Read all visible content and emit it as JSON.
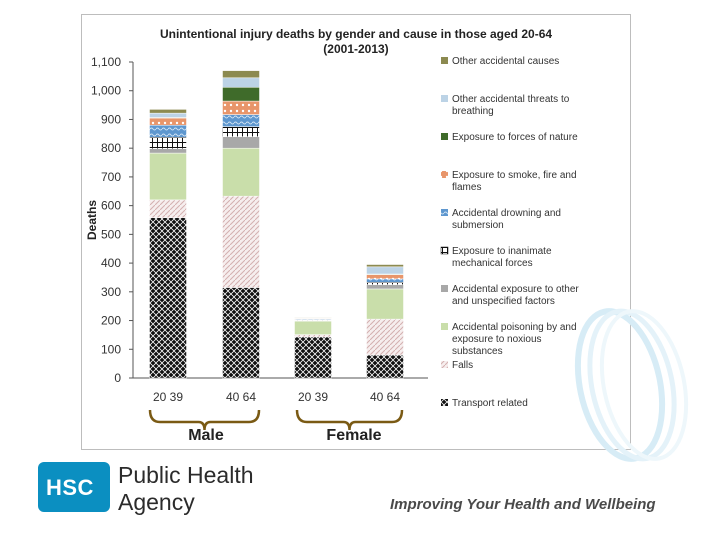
{
  "chart_data": {
    "type": "bar",
    "stacked": true,
    "title": "Unintentional injury deaths by gender and cause in those aged 20-64",
    "subtitle": "(2001-2013)",
    "ylabel": "Deaths",
    "xlabel": "",
    "ylim": [
      0,
      1100
    ],
    "yticks": [
      0,
      100,
      200,
      300,
      400,
      500,
      600,
      700,
      800,
      900,
      1000,
      1100
    ],
    "ytick_labels": [
      "0",
      "100",
      "200",
      "300",
      "400",
      "500",
      "600",
      "700",
      "800",
      "900",
      "1,000",
      "1,100"
    ],
    "categories": [
      "20 39",
      "40 64",
      "20 39",
      "40 64"
    ],
    "groups": [
      "Male",
      "Female"
    ],
    "legend_position": "right",
    "series": [
      {
        "name": "Transport related",
        "color": "#222222",
        "values": [
          558,
          315,
          143,
          80
        ]
      },
      {
        "name": "Falls",
        "color": "#e6d3d3",
        "values": [
          62,
          318,
          8,
          125
        ]
      },
      {
        "name": "Accidental poisoning by and exposure to noxious substances",
        "color": "#c9deaa",
        "values": [
          163,
          167,
          47,
          105
        ]
      },
      {
        "name": "Accidental exposure to other and unspecified factors",
        "color": "#a8a8a8",
        "values": [
          15,
          40,
          2,
          15
        ]
      },
      {
        "name": "Exposure to inanimate mechanical forces",
        "color": "#ffffff",
        "values": [
          40,
          35,
          2,
          8
        ]
      },
      {
        "name": "Accidental drowning and submersion",
        "color": "#6fa3d6",
        "values": [
          42,
          42,
          3,
          12
        ]
      },
      {
        "name": "Exposure to smoke, fire and flames",
        "color": "#e9a27a",
        "values": [
          25,
          47,
          2,
          15
        ]
      },
      {
        "name": "Exposure to forces of nature",
        "color": "#3f6b2a",
        "values": [
          2,
          48,
          1,
          2
        ]
      },
      {
        "name": "Other accidental threats to breathing",
        "color": "#bcd3e6",
        "values": [
          15,
          33,
          2,
          25
        ]
      },
      {
        "name": "Other accidental causes",
        "color": "#8c8a50",
        "values": [
          13,
          25,
          1,
          8
        ]
      }
    ]
  },
  "branding": {
    "logo_text": "HSC",
    "agency_line1": "Public Health",
    "agency_line2": "Agency",
    "tagline": "Improving Your Health and Wellbeing",
    "brand_color": "#0b8fc1"
  }
}
